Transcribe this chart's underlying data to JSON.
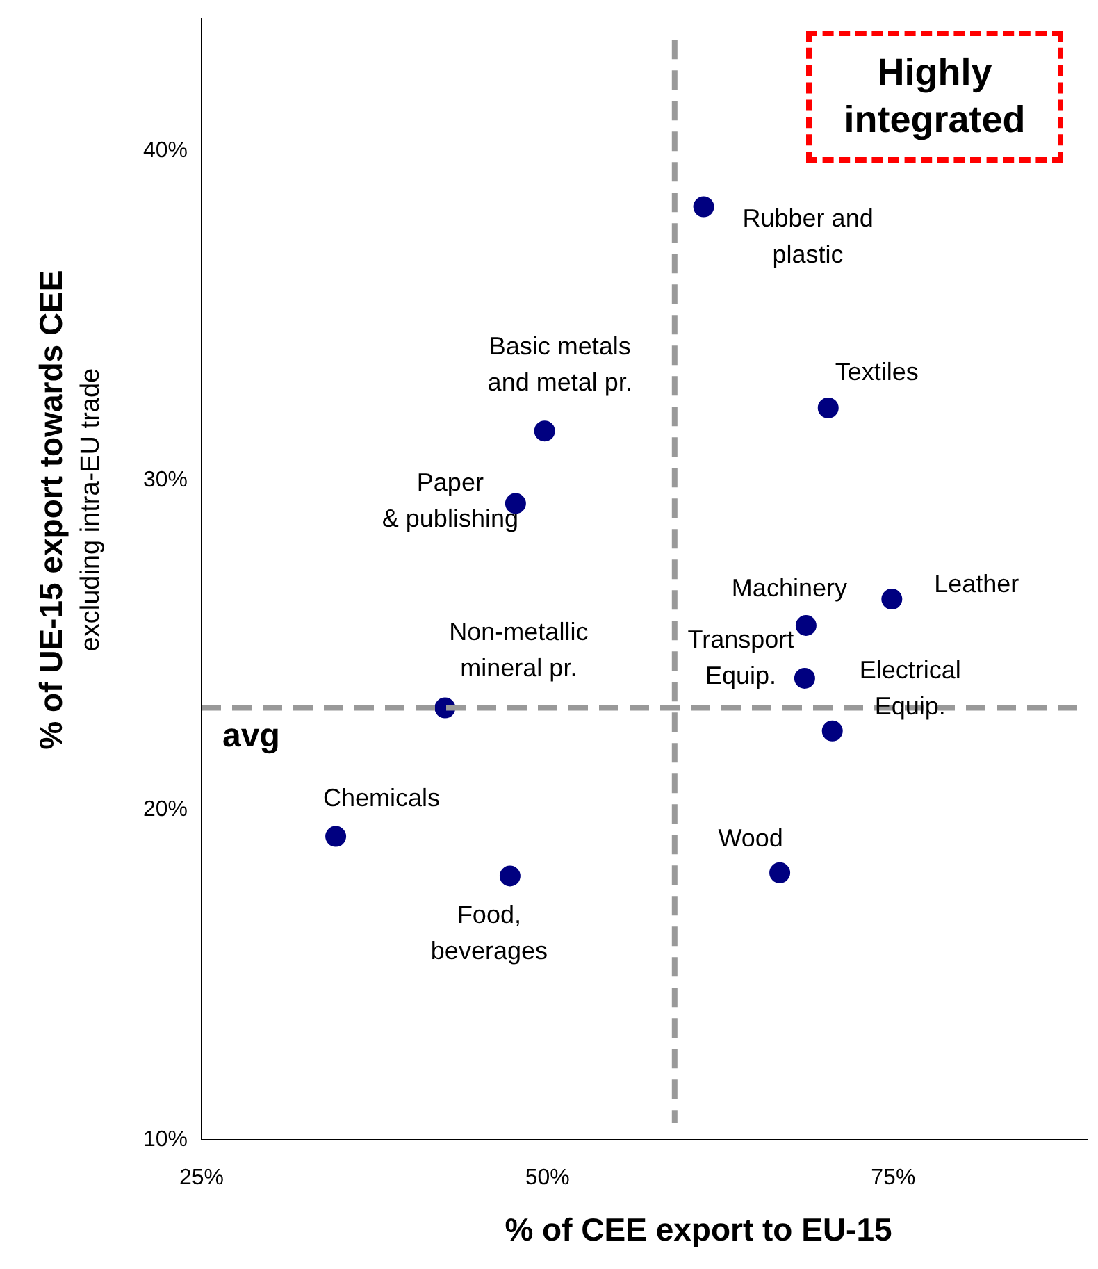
{
  "chart_data": {
    "type": "scatter",
    "xlabel": "% of CEE export to EU-15",
    "ylabel": "% of UE-15 export towards CEE",
    "x": [
      61.3,
      70.3,
      49.8,
      47.7,
      68.7,
      74.9,
      68.6,
      70.6,
      42.6,
      34.7,
      47.3,
      66.8
    ],
    "values": [
      38.3,
      32.2,
      31.5,
      29.3,
      25.6,
      26.4,
      24.0,
      22.4,
      23.1,
      19.2,
      18.0,
      18.1
    ],
    "color": "#000080",
    "marker": "circle",
    "xlim": [
      25,
      89
    ],
    "ylim": [
      10,
      44
    ],
    "xticks": [
      {
        "value": 25,
        "label": "25%"
      },
      {
        "value": 50,
        "label": "50%"
      },
      {
        "value": 75,
        "label": "75%"
      }
    ],
    "yticks": [
      {
        "value": 10,
        "label": "10%"
      },
      {
        "value": 20,
        "label": "20%"
      },
      {
        "value": 30,
        "label": "30%"
      },
      {
        "value": 40,
        "label": "40%"
      }
    ],
    "grid": false,
    "legend": false,
    "ref_lines": [
      {
        "axis": "x",
        "value": 59.2,
        "color": "#999999",
        "line_style": "dashed"
      },
      {
        "axis": "y",
        "value": 23.1,
        "label": "avg",
        "color": "#999999",
        "line_style": "dashed"
      }
    ],
    "annotations": [
      {
        "text": "Rubber and\nplastic",
        "x": 61.3,
        "y": 38.3
      },
      {
        "text": "Textiles",
        "x": 70.3,
        "y": 32.2
      },
      {
        "text": "Basic metals\nand metal pr.",
        "x": 49.8,
        "y": 31.5
      },
      {
        "text": "Paper\n& publishing",
        "x": 47.7,
        "y": 29.3
      },
      {
        "text": "Machinery",
        "x": 68.7,
        "y": 25.6
      },
      {
        "text": "Leather",
        "x": 74.9,
        "y": 26.4
      },
      {
        "text": "Transport\nEquip.",
        "x": 68.6,
        "y": 24.0
      },
      {
        "text": "Electrical\nEquip.",
        "x": 70.6,
        "y": 22.4
      },
      {
        "text": "Non-metallic\nmineral pr.",
        "x": 42.6,
        "y": 23.1
      },
      {
        "text": "Chemicals",
        "x": 34.7,
        "y": 19.2
      },
      {
        "text": "Food,\nbeverages",
        "x": 47.3,
        "y": 18.0
      },
      {
        "text": "Wood",
        "x": 66.8,
        "y": 18.1
      },
      "excluding intra-EU trade",
      "Highly integrated"
    ]
  }
}
